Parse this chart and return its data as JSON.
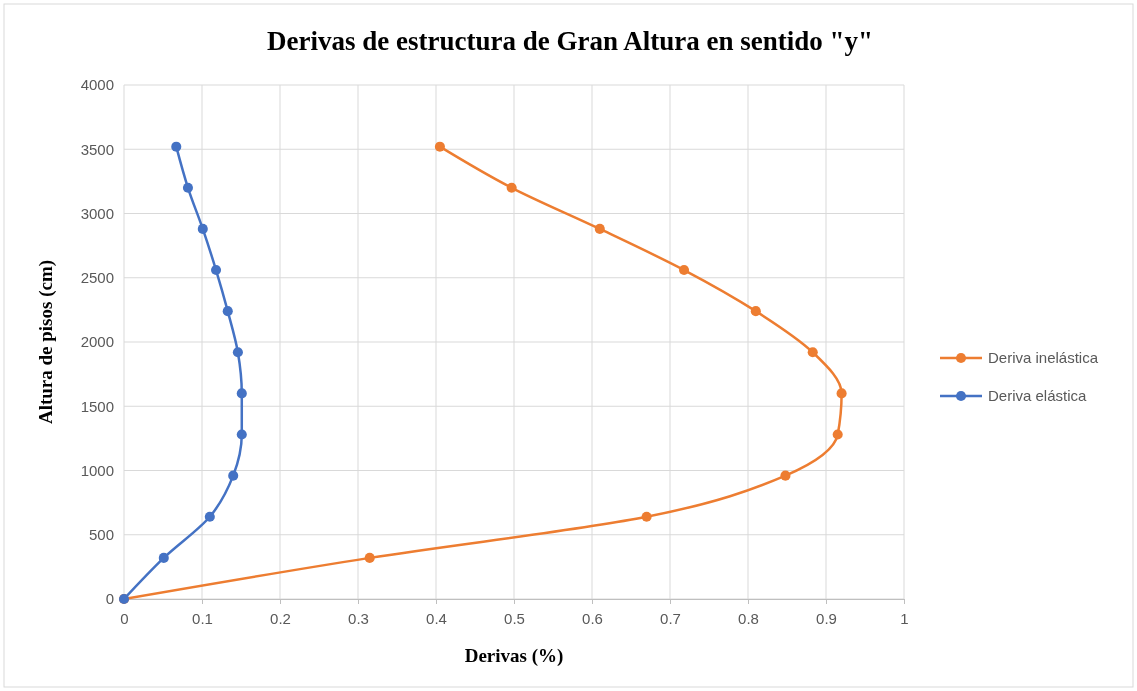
{
  "chart_data": {
    "type": "line",
    "title": "Derivas de estructura de Gran Altura en sentido \"y\"",
    "xlabel": "Derivas (%)",
    "ylabel": "Altura de pisos (cm)",
    "series": [
      {
        "name": "Deriva inelástica",
        "color": "#ed7d31",
        "x": [
          0,
          0.315,
          0.67,
          0.848,
          0.915,
          0.92,
          0.883,
          0.81,
          0.718,
          0.61,
          0.497,
          0.405
        ],
        "values": [
          0,
          320,
          640,
          960,
          1280,
          1600,
          1920,
          2240,
          2560,
          2880,
          3200,
          3520
        ]
      },
      {
        "name": "Deriva elástica",
        "color": "#4472c4",
        "x": [
          0,
          0.051,
          0.11,
          0.14,
          0.151,
          0.151,
          0.146,
          0.133,
          0.118,
          0.101,
          0.082,
          0.067
        ],
        "values": [
          0,
          320,
          640,
          960,
          1280,
          1600,
          1920,
          2240,
          2560,
          2880,
          3200,
          3520
        ]
      }
    ],
    "xlim": [
      0,
      1
    ],
    "xticks": [
      0,
      0.1,
      0.2,
      0.3,
      0.4,
      0.5,
      0.6,
      0.7,
      0.8,
      0.9,
      1
    ],
    "ylim": [
      0,
      4000
    ],
    "yticks": [
      0,
      500,
      1000,
      1500,
      2000,
      2500,
      3000,
      3500,
      4000
    ],
    "grid": true,
    "legend": "right",
    "marker": "circle",
    "line_style": "solid"
  }
}
